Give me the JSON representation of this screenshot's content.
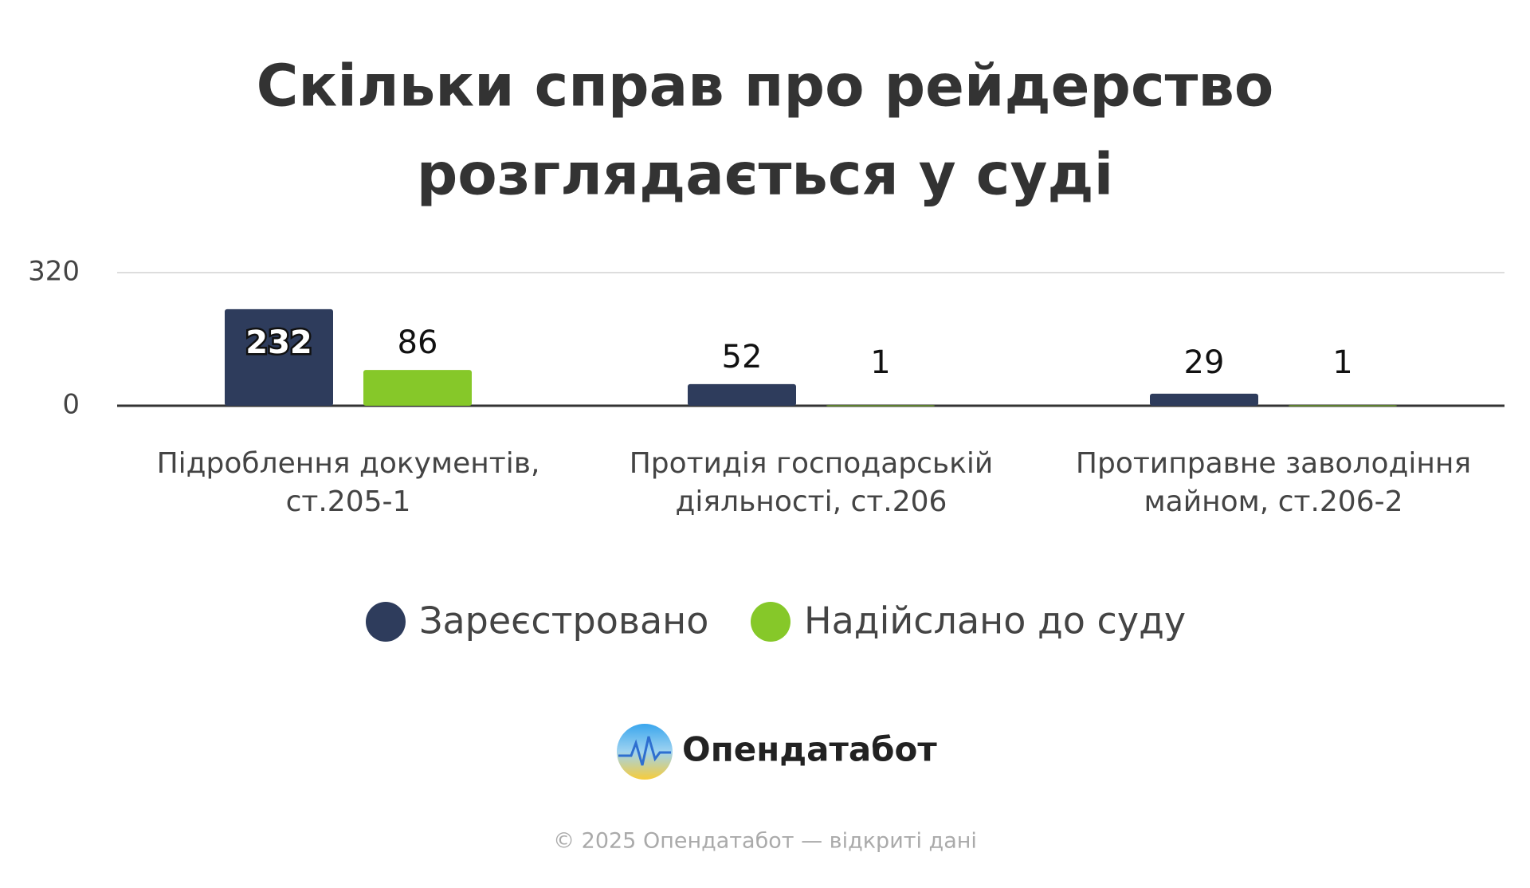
{
  "chart_data": {
    "type": "bar",
    "title": [
      "Скільки справ про рейдерство",
      "розглядається у суді"
    ],
    "categories": [
      [
        "Підроблення документів,",
        "ст.205-1"
      ],
      [
        "Протидія господарській",
        "діяльності, ст.206"
      ],
      [
        "Протиправне заволодіння",
        "майном, ст.206-2"
      ]
    ],
    "series": [
      {
        "name": "Зареєстровано",
        "color": "#2e3c5c",
        "values": [
          232,
          52,
          29
        ]
      },
      {
        "name": "Надійслано до суду",
        "color": "#86c829",
        "values": [
          86,
          1,
          1
        ]
      }
    ],
    "ylim": [
      0,
      320
    ],
    "yticks": [
      0,
      320
    ],
    "grid": true
  },
  "logo": "Опендатабот",
  "footer": "© 2025 Опендатабот — відкриті дані"
}
